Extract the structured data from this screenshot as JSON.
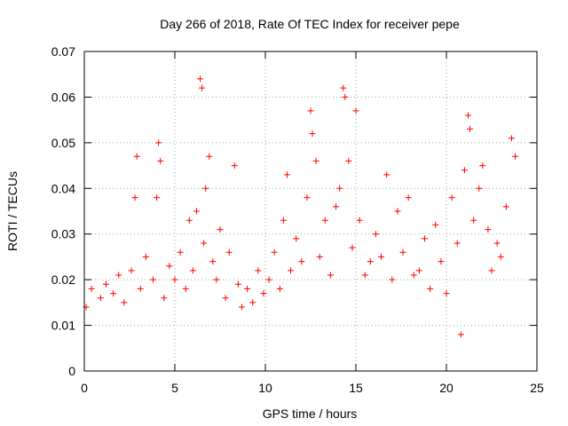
{
  "chart_data": {
    "type": "scatter",
    "title": "Day 266 of 2018, Rate Of TEC Index for receiver pepe",
    "xlabel": "GPS time / hours",
    "ylabel": "ROTI / TECUs",
    "xlim": [
      0,
      25
    ],
    "ylim": [
      0,
      0.07
    ],
    "xticks": [
      0,
      5,
      10,
      15,
      20,
      25
    ],
    "xtick_labels": [
      "0",
      "5",
      "10",
      "15",
      "20",
      "25"
    ],
    "yticks": [
      0,
      0.01,
      0.02,
      0.03,
      0.04,
      0.05,
      0.06,
      0.07
    ],
    "ytick_labels": [
      "0",
      "0.01",
      "0.02",
      "0.03",
      "0.04",
      "0.05",
      "0.06",
      "0.07"
    ],
    "grid": true,
    "marker": "+",
    "color": "#ff0000",
    "series": [
      {
        "name": "ROTI",
        "x": [
          0.1,
          0.4,
          0.9,
          1.2,
          1.6,
          1.9,
          2.2,
          2.6,
          2.8,
          2.9,
          3.1,
          3.4,
          3.8,
          4.0,
          4.1,
          4.2,
          4.4,
          4.7,
          5.0,
          5.3,
          5.6,
          5.8,
          6.0,
          6.2,
          6.4,
          6.5,
          6.6,
          6.7,
          6.9,
          7.1,
          7.3,
          7.5,
          7.8,
          8.0,
          8.3,
          8.5,
          8.7,
          9.0,
          9.3,
          9.6,
          9.9,
          10.2,
          10.5,
          10.8,
          11.0,
          11.2,
          11.4,
          11.7,
          12.0,
          12.3,
          12.5,
          12.6,
          12.8,
          13.0,
          13.3,
          13.6,
          13.9,
          14.1,
          14.3,
          14.4,
          14.6,
          14.8,
          15.0,
          15.2,
          15.5,
          15.8,
          16.1,
          16.4,
          16.7,
          17.0,
          17.3,
          17.6,
          17.9,
          18.2,
          18.5,
          18.8,
          19.1,
          19.4,
          19.7,
          20.0,
          20.3,
          20.6,
          20.8,
          21.0,
          21.2,
          21.3,
          21.5,
          21.8,
          22.0,
          22.3,
          22.5,
          22.8,
          23.0,
          23.3,
          23.6,
          23.8
        ],
        "y": [
          0.014,
          0.018,
          0.016,
          0.019,
          0.017,
          0.021,
          0.015,
          0.022,
          0.038,
          0.047,
          0.018,
          0.025,
          0.02,
          0.038,
          0.05,
          0.046,
          0.016,
          0.023,
          0.02,
          0.026,
          0.018,
          0.033,
          0.022,
          0.035,
          0.064,
          0.062,
          0.028,
          0.04,
          0.047,
          0.024,
          0.02,
          0.031,
          0.016,
          0.026,
          0.045,
          0.019,
          0.014,
          0.018,
          0.015,
          0.022,
          0.017,
          0.02,
          0.026,
          0.018,
          0.033,
          0.043,
          0.022,
          0.029,
          0.024,
          0.038,
          0.057,
          0.052,
          0.046,
          0.025,
          0.033,
          0.021,
          0.036,
          0.04,
          0.062,
          0.06,
          0.046,
          0.027,
          0.057,
          0.033,
          0.021,
          0.024,
          0.03,
          0.025,
          0.043,
          0.02,
          0.035,
          0.026,
          0.038,
          0.021,
          0.022,
          0.029,
          0.018,
          0.032,
          0.024,
          0.017,
          0.038,
          0.028,
          0.008,
          0.044,
          0.056,
          0.053,
          0.033,
          0.04,
          0.045,
          0.031,
          0.022,
          0.028,
          0.025,
          0.036,
          0.051,
          0.047
        ]
      }
    ]
  }
}
